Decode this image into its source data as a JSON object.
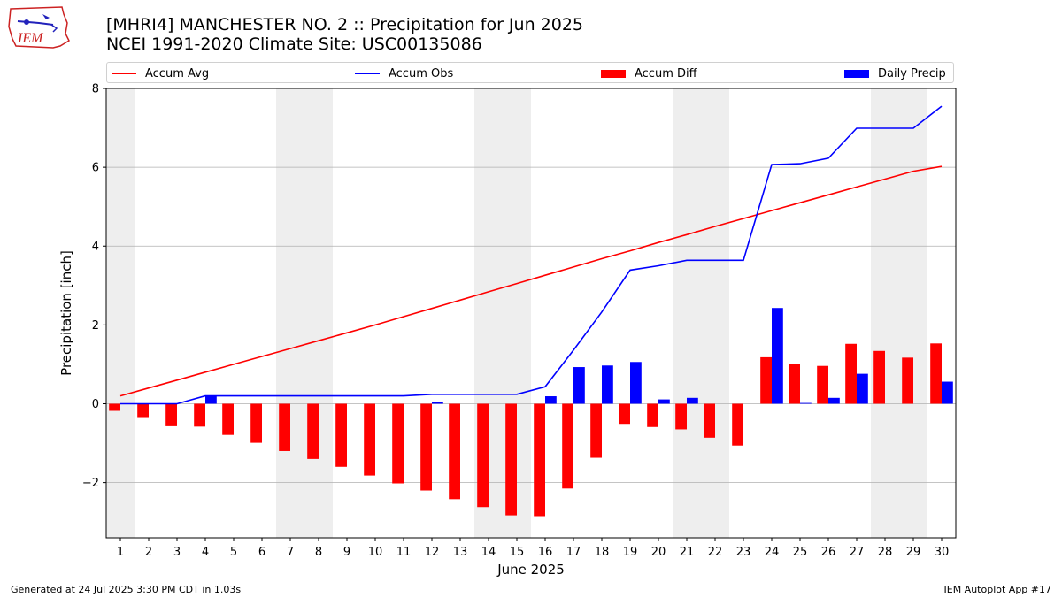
{
  "header": {
    "title_line1": "[MHRI4] MANCHESTER NO. 2 :: Precipitation for Jun 2025",
    "title_line2": "NCEI 1991-2020 Climate Site: USC00135086"
  },
  "logo": {
    "text": "IEM"
  },
  "footer": {
    "left": "Generated at 24 Jul 2025 3:30 PM CDT in 1.03s",
    "right": "IEM Autoplot App #17"
  },
  "colors": {
    "accum_avg": "#ff0000",
    "accum_obs": "#0000ff",
    "accum_diff": "#ff0000",
    "daily_precip": "#0000ff",
    "weekend_shade": "#eeeeee",
    "grid": "#b0b0b0"
  },
  "legend": [
    {
      "label": "Accum Avg",
      "kind": "line",
      "color": "#ff0000"
    },
    {
      "label": "Accum Obs",
      "kind": "line",
      "color": "#0000ff"
    },
    {
      "label": "Accum Diff",
      "kind": "box",
      "color": "#ff0000"
    },
    {
      "label": "Daily Precip",
      "kind": "box",
      "color": "#0000ff"
    }
  ],
  "chart_data": {
    "type": "bar",
    "xlabel": "June 2025",
    "ylabel": "Precipitation [inch]",
    "ylim": [
      -3.4,
      8.0
    ],
    "yticks": [
      -2,
      0,
      2,
      4,
      6,
      8
    ],
    "ytick_labels": [
      "−2",
      "0",
      "2",
      "4",
      "6",
      "8"
    ],
    "grid": "horizontal",
    "legend_placement": "top",
    "categories": [
      "1",
      "2",
      "3",
      "4",
      "5",
      "6",
      "7",
      "8",
      "9",
      "10",
      "11",
      "12",
      "13",
      "14",
      "15",
      "16",
      "17",
      "18",
      "19",
      "20",
      "21",
      "22",
      "23",
      "24",
      "25",
      "26",
      "27",
      "28",
      "29",
      "30"
    ],
    "weekend_shading": [
      [
        1,
        1
      ],
      [
        7,
        8
      ],
      [
        14,
        15
      ],
      [
        21,
        22
      ],
      [
        28,
        29
      ]
    ],
    "series": [
      {
        "name": "Accum Avg",
        "type": "line",
        "values": [
          0.2,
          0.4,
          0.6,
          0.8,
          1.0,
          1.2,
          1.4,
          1.6,
          1.8,
          2.0,
          2.21,
          2.42,
          2.63,
          2.84,
          3.05,
          3.26,
          3.47,
          3.68,
          3.88,
          4.09,
          4.29,
          4.5,
          4.7,
          4.9,
          5.1,
          5.3,
          5.5,
          5.7,
          5.9,
          6.02
        ]
      },
      {
        "name": "Accum Obs",
        "type": "line",
        "values": [
          0.0,
          0.0,
          0.0,
          0.2,
          0.2,
          0.2,
          0.2,
          0.2,
          0.2,
          0.2,
          0.2,
          0.24,
          0.24,
          0.24,
          0.24,
          0.43,
          1.36,
          2.33,
          3.39,
          3.5,
          3.64,
          3.64,
          3.64,
          6.07,
          6.09,
          6.23,
          6.99,
          6.99,
          6.99,
          7.55
        ]
      },
      {
        "name": "Accum Diff",
        "type": "bar",
        "values": [
          -0.18,
          -0.36,
          -0.57,
          -0.58,
          -0.79,
          -0.99,
          -1.2,
          -1.4,
          -1.6,
          -1.82,
          -2.02,
          -2.2,
          -2.42,
          -2.62,
          -2.83,
          -2.85,
          -2.15,
          -1.37,
          -0.51,
          -0.59,
          -0.65,
          -0.86,
          -1.06,
          1.18,
          1.0,
          0.96,
          1.52,
          1.34,
          1.17,
          1.53
        ]
      },
      {
        "name": "Daily Precip",
        "type": "bar",
        "values": [
          0,
          0,
          0,
          0.2,
          0,
          0,
          0,
          0,
          0,
          0,
          0,
          0.04,
          0,
          0,
          0,
          0.19,
          0.93,
          0.97,
          1.06,
          0.11,
          0.15,
          0,
          0,
          2.43,
          0.02,
          0.15,
          0.76,
          0,
          0,
          0.56
        ]
      }
    ]
  }
}
